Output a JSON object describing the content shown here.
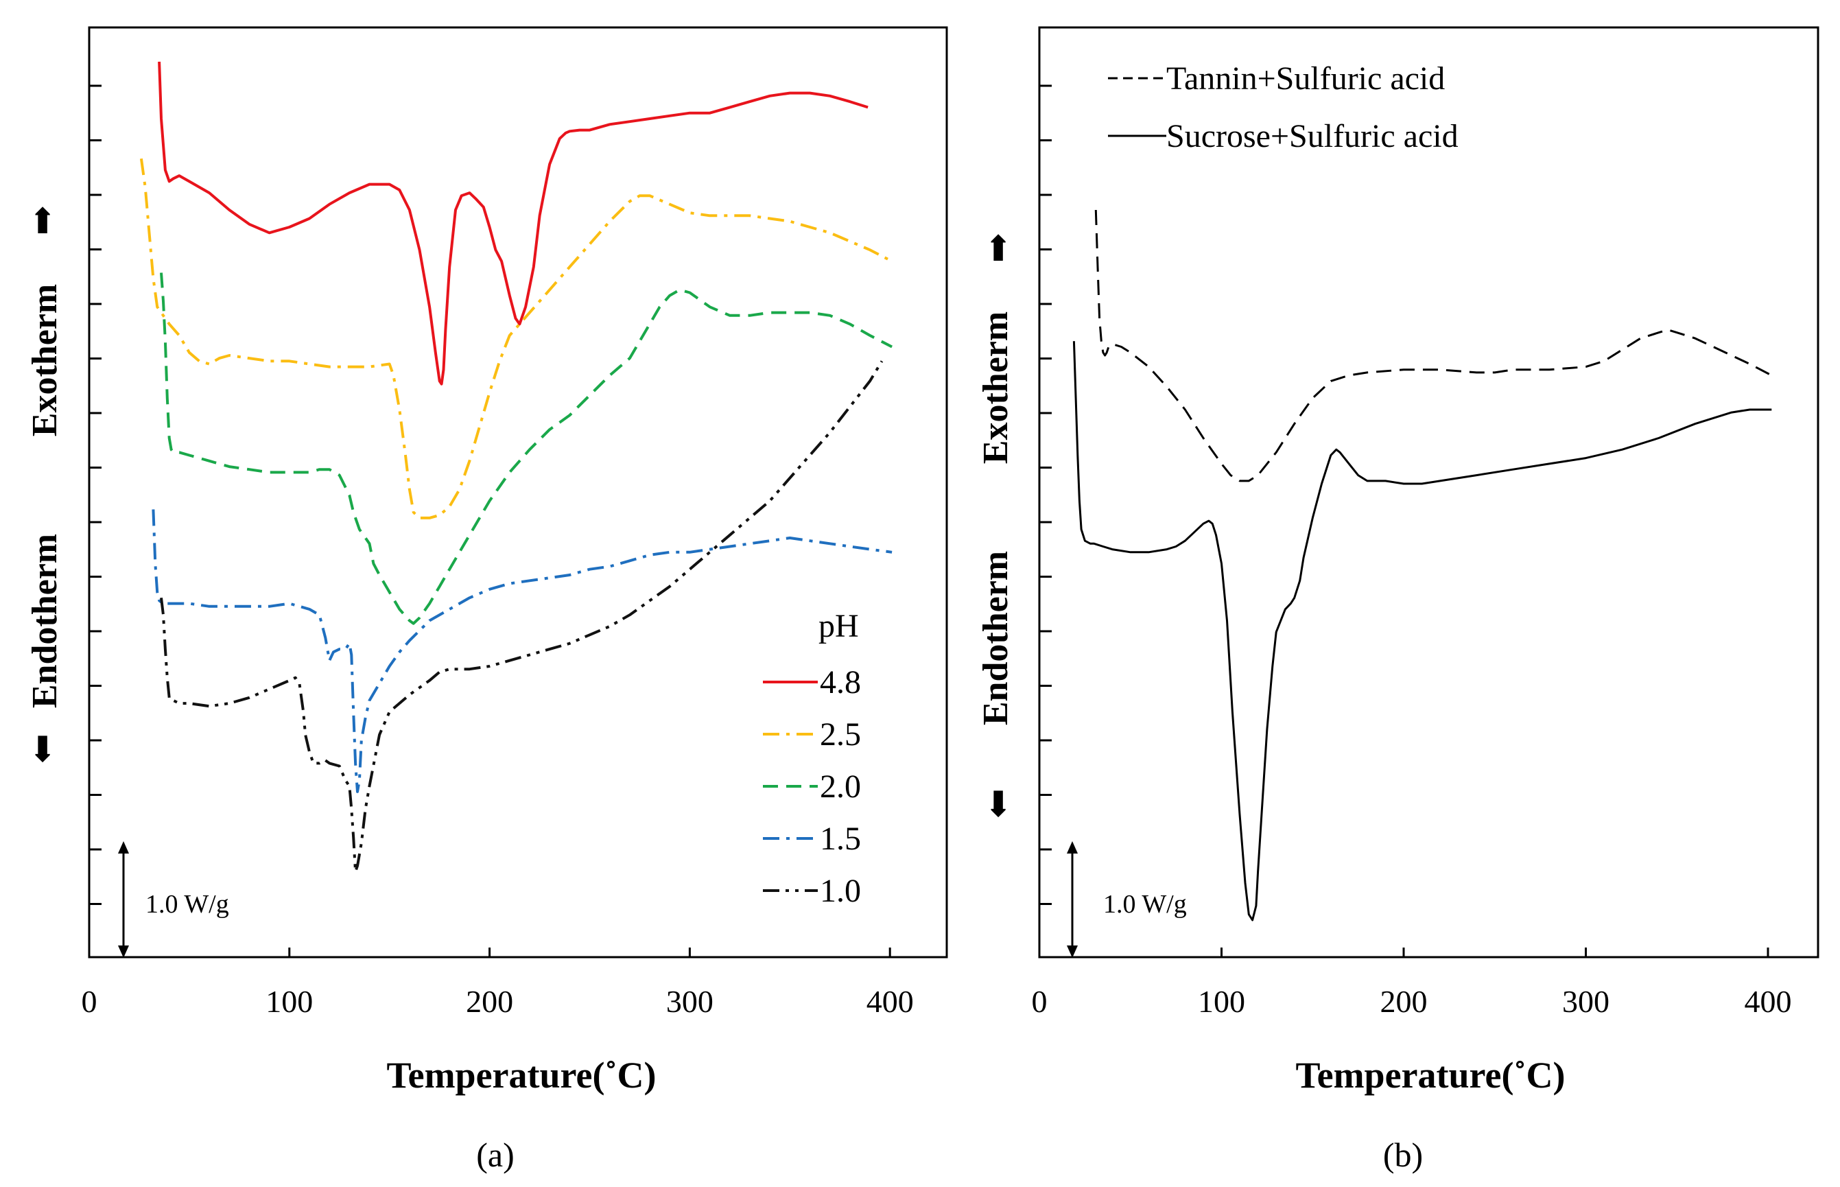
{
  "chart_data": [
    {
      "panel": "(a)",
      "type": "line",
      "xlabel": "Temperature(˚C)",
      "xlim": [
        0,
        420
      ],
      "xticks": [
        0,
        100,
        200,
        300,
        400
      ],
      "ylabel_up": "Exotherm",
      "ylabel_down": "Endotherm",
      "arrow_up": "⬆",
      "arrow_down": "⬇",
      "scale_bar": "1.0 W/g",
      "legend_title": "pH",
      "series": [
        {
          "name": "4.8",
          "color": "#e8141c",
          "dash": "solid",
          "x": [
            35,
            36,
            38,
            40,
            42,
            45,
            50,
            60,
            70,
            80,
            90,
            100,
            110,
            120,
            130,
            140,
            150,
            155,
            160,
            165,
            170,
            173,
            175,
            176,
            177,
            178,
            180,
            183,
            186,
            190,
            193,
            197,
            200,
            203,
            206,
            210,
            213,
            215,
            218,
            222,
            225,
            230,
            235,
            238,
            240,
            245,
            250,
            260,
            270,
            280,
            290,
            300,
            310,
            320,
            330,
            340,
            350,
            360,
            370,
            380,
            389
          ],
          "y": [
            16.2,
            15.2,
            14.3,
            14.1,
            14.15,
            14.2,
            14.1,
            13.9,
            13.6,
            13.35,
            13.2,
            13.3,
            13.45,
            13.7,
            13.9,
            14.05,
            14.05,
            13.95,
            13.6,
            12.9,
            11.9,
            11.1,
            10.6,
            10.55,
            10.8,
            11.5,
            12.6,
            13.6,
            13.85,
            13.9,
            13.8,
            13.65,
            13.3,
            12.9,
            12.7,
            12.1,
            11.7,
            11.6,
            11.9,
            12.6,
            13.5,
            14.4,
            14.85,
            14.95,
            14.98,
            15.0,
            15.0,
            15.1,
            15.15,
            15.2,
            15.25,
            15.3,
            15.3,
            15.4,
            15.5,
            15.6,
            15.65,
            15.65,
            15.6,
            15.5,
            15.4
          ]
        },
        {
          "name": "2.5",
          "color": "#fbbd12",
          "dash": "dashdot",
          "x": [
            26,
            28,
            30,
            32,
            34,
            36,
            40,
            45,
            50,
            55,
            60,
            65,
            70,
            80,
            90,
            100,
            110,
            120,
            130,
            140,
            150,
            152,
            155,
            158,
            160,
            162,
            165,
            170,
            175,
            180,
            185,
            190,
            195,
            200,
            205,
            210,
            215,
            220,
            225,
            230,
            240,
            250,
            260,
            270,
            275,
            280,
            290,
            300,
            310,
            320,
            330,
            340,
            350,
            360,
            370,
            380,
            390,
            401
          ],
          "y": [
            14.5,
            14.0,
            13.2,
            12.4,
            11.9,
            11.8,
            11.6,
            11.4,
            11.1,
            10.95,
            10.9,
            11.0,
            11.05,
            11.0,
            10.95,
            10.95,
            10.9,
            10.85,
            10.85,
            10.85,
            10.9,
            10.7,
            10.1,
            9.3,
            8.7,
            8.3,
            8.2,
            8.2,
            8.25,
            8.4,
            8.7,
            9.2,
            9.8,
            10.4,
            10.95,
            11.4,
            11.6,
            11.8,
            12.0,
            12.2,
            12.6,
            13.0,
            13.4,
            13.75,
            13.85,
            13.85,
            13.7,
            13.55,
            13.5,
            13.5,
            13.5,
            13.45,
            13.4,
            13.3,
            13.2,
            13.05,
            12.9,
            12.7
          ]
        },
        {
          "name": "2.0",
          "color": "#1aa84a",
          "dash": "dashed",
          "x": [
            36,
            37,
            38,
            39,
            40,
            41,
            42,
            45,
            50,
            60,
            70,
            80,
            90,
            100,
            110,
            115,
            120,
            125,
            130,
            132,
            135,
            138,
            140,
            142,
            145,
            150,
            155,
            160,
            162,
            165,
            170,
            175,
            180,
            190,
            200,
            210,
            220,
            230,
            240,
            250,
            260,
            270,
            280,
            285,
            290,
            295,
            300,
            310,
            320,
            330,
            340,
            350,
            360,
            370,
            380,
            390,
            401
          ],
          "y": [
            12.5,
            12.0,
            11.3,
            10.3,
            9.6,
            9.4,
            9.35,
            9.35,
            9.3,
            9.2,
            9.1,
            9.05,
            9.0,
            9.0,
            9.0,
            9.05,
            9.05,
            8.95,
            8.6,
            8.3,
            8.0,
            7.85,
            7.75,
            7.4,
            7.2,
            6.9,
            6.6,
            6.4,
            6.35,
            6.45,
            6.7,
            7.0,
            7.3,
            7.9,
            8.5,
            9.0,
            9.4,
            9.75,
            10.0,
            10.35,
            10.7,
            11.0,
            11.6,
            11.9,
            12.1,
            12.2,
            12.15,
            11.9,
            11.75,
            11.75,
            11.8,
            11.8,
            11.8,
            11.75,
            11.6,
            11.4,
            11.2
          ]
        },
        {
          "name": "1.5",
          "color": "#1f6fbf",
          "dash": "dashdot",
          "x": [
            32,
            33,
            34,
            35,
            37,
            40,
            45,
            50,
            60,
            70,
            80,
            90,
            100,
            110,
            115,
            118,
            120,
            122,
            125,
            128,
            130,
            131,
            132,
            133,
            134,
            135,
            136,
            138,
            140,
            145,
            150,
            155,
            160,
            170,
            180,
            190,
            200,
            210,
            220,
            230,
            240,
            250,
            260,
            270,
            280,
            290,
            300,
            310,
            320,
            330,
            340,
            350,
            360,
            370,
            380,
            390,
            401
          ],
          "y": [
            8.35,
            7.4,
            6.9,
            6.75,
            6.7,
            6.7,
            6.7,
            6.7,
            6.65,
            6.65,
            6.65,
            6.65,
            6.7,
            6.6,
            6.5,
            6.1,
            5.7,
            5.85,
            5.9,
            5.9,
            6.0,
            5.8,
            4.8,
            3.9,
            3.4,
            3.6,
            4.3,
            4.7,
            5.0,
            5.3,
            5.6,
            5.85,
            6.05,
            6.4,
            6.6,
            6.8,
            6.95,
            7.05,
            7.1,
            7.15,
            7.2,
            7.3,
            7.35,
            7.45,
            7.55,
            7.6,
            7.6,
            7.65,
            7.7,
            7.75,
            7.8,
            7.85,
            7.8,
            7.75,
            7.7,
            7.65,
            7.6
          ]
        },
        {
          "name": "1.0",
          "color": "#111111",
          "dash": "dashdotdot",
          "x": [
            36,
            37,
            38,
            39,
            40,
            41,
            42,
            45,
            50,
            60,
            70,
            80,
            90,
            100,
            103,
            105,
            107,
            108,
            110,
            112,
            115,
            118,
            120,
            125,
            128,
            130,
            131,
            132,
            133,
            134,
            136,
            138,
            140,
            145,
            150,
            160,
            170,
            175,
            180,
            190,
            200,
            210,
            220,
            230,
            240,
            250,
            260,
            270,
            280,
            290,
            300,
            310,
            320,
            330,
            340,
            350,
            360,
            370,
            380,
            390,
            396
          ],
          "y": [
            6.8,
            6.5,
            5.9,
            5.4,
            5.05,
            5.0,
            5.0,
            4.95,
            4.95,
            4.9,
            4.95,
            5.05,
            5.2,
            5.35,
            5.4,
            5.3,
            4.8,
            4.4,
            4.1,
            3.9,
            3.9,
            3.95,
            3.9,
            3.85,
            3.6,
            3.5,
            3.1,
            2.6,
            2.0,
            2.1,
            2.5,
            3.1,
            3.5,
            4.4,
            4.8,
            5.1,
            5.35,
            5.5,
            5.55,
            5.55,
            5.6,
            5.7,
            5.8,
            5.9,
            6.0,
            6.15,
            6.3,
            6.5,
            6.75,
            7.0,
            7.3,
            7.6,
            7.9,
            8.2,
            8.5,
            8.9,
            9.3,
            9.7,
            10.15,
            10.6,
            10.95
          ]
        }
      ]
    },
    {
      "panel": "(b)",
      "type": "line",
      "xlabel": "Temperature(˚C)",
      "xlim": [
        0,
        420
      ],
      "xticks": [
        0,
        100,
        200,
        300,
        400
      ],
      "ylabel_up": "Exotherm",
      "ylabel_down": "Endotherm",
      "arrow_up": "⬆",
      "arrow_down": "⬇",
      "scale_bar": "1.0 W/g",
      "series": [
        {
          "name": "Tannin+Sulfuric acid",
          "color": "#000000",
          "dash": "dashed",
          "x": [
            31,
            32,
            33,
            34,
            35,
            36,
            37,
            38,
            40,
            45,
            50,
            60,
            70,
            80,
            90,
            100,
            105,
            110,
            115,
            120,
            130,
            140,
            150,
            160,
            170,
            180,
            200,
            220,
            240,
            250,
            260,
            280,
            300,
            310,
            320,
            330,
            340,
            345,
            350,
            360,
            370,
            380,
            390,
            402
          ],
          "y": [
            13.6,
            12.6,
            11.7,
            11.3,
            11.1,
            11.05,
            11.1,
            11.2,
            11.25,
            11.2,
            11.1,
            10.85,
            10.5,
            10.1,
            9.6,
            9.15,
            8.95,
            8.85,
            8.85,
            8.95,
            9.35,
            9.85,
            10.3,
            10.6,
            10.7,
            10.75,
            10.8,
            10.8,
            10.75,
            10.75,
            10.8,
            10.8,
            10.85,
            10.95,
            11.15,
            11.35,
            11.45,
            11.5,
            11.45,
            11.35,
            11.2,
            11.05,
            10.9,
            10.7
          ]
        },
        {
          "name": "Sucrose+Sulfuric acid",
          "color": "#000000",
          "dash": "solid",
          "x": [
            19,
            20,
            21,
            22,
            23,
            25,
            28,
            30,
            35,
            40,
            50,
            60,
            70,
            75,
            80,
            85,
            90,
            93,
            95,
            97,
            100,
            103,
            106,
            110,
            113,
            115,
            117,
            119,
            120,
            122,
            125,
            128,
            130,
            135,
            138,
            140,
            143,
            145,
            150,
            155,
            160,
            163,
            165,
            170,
            175,
            180,
            190,
            200,
            210,
            220,
            240,
            260,
            280,
            300,
            320,
            340,
            360,
            380,
            390,
            402
          ],
          "y": [
            11.3,
            10.3,
            9.3,
            8.5,
            8.0,
            7.8,
            7.75,
            7.75,
            7.7,
            7.65,
            7.6,
            7.6,
            7.65,
            7.7,
            7.8,
            7.95,
            8.1,
            8.15,
            8.1,
            7.9,
            7.4,
            6.4,
            4.8,
            3.0,
            1.8,
            1.25,
            1.15,
            1.4,
            2.0,
            3.0,
            4.5,
            5.6,
            6.2,
            6.6,
            6.7,
            6.8,
            7.1,
            7.5,
            8.2,
            8.8,
            9.3,
            9.4,
            9.35,
            9.15,
            8.95,
            8.85,
            8.85,
            8.8,
            8.8,
            8.85,
            8.95,
            9.05,
            9.15,
            9.25,
            9.4,
            9.6,
            9.85,
            10.05,
            10.1,
            10.1
          ]
        }
      ]
    }
  ]
}
